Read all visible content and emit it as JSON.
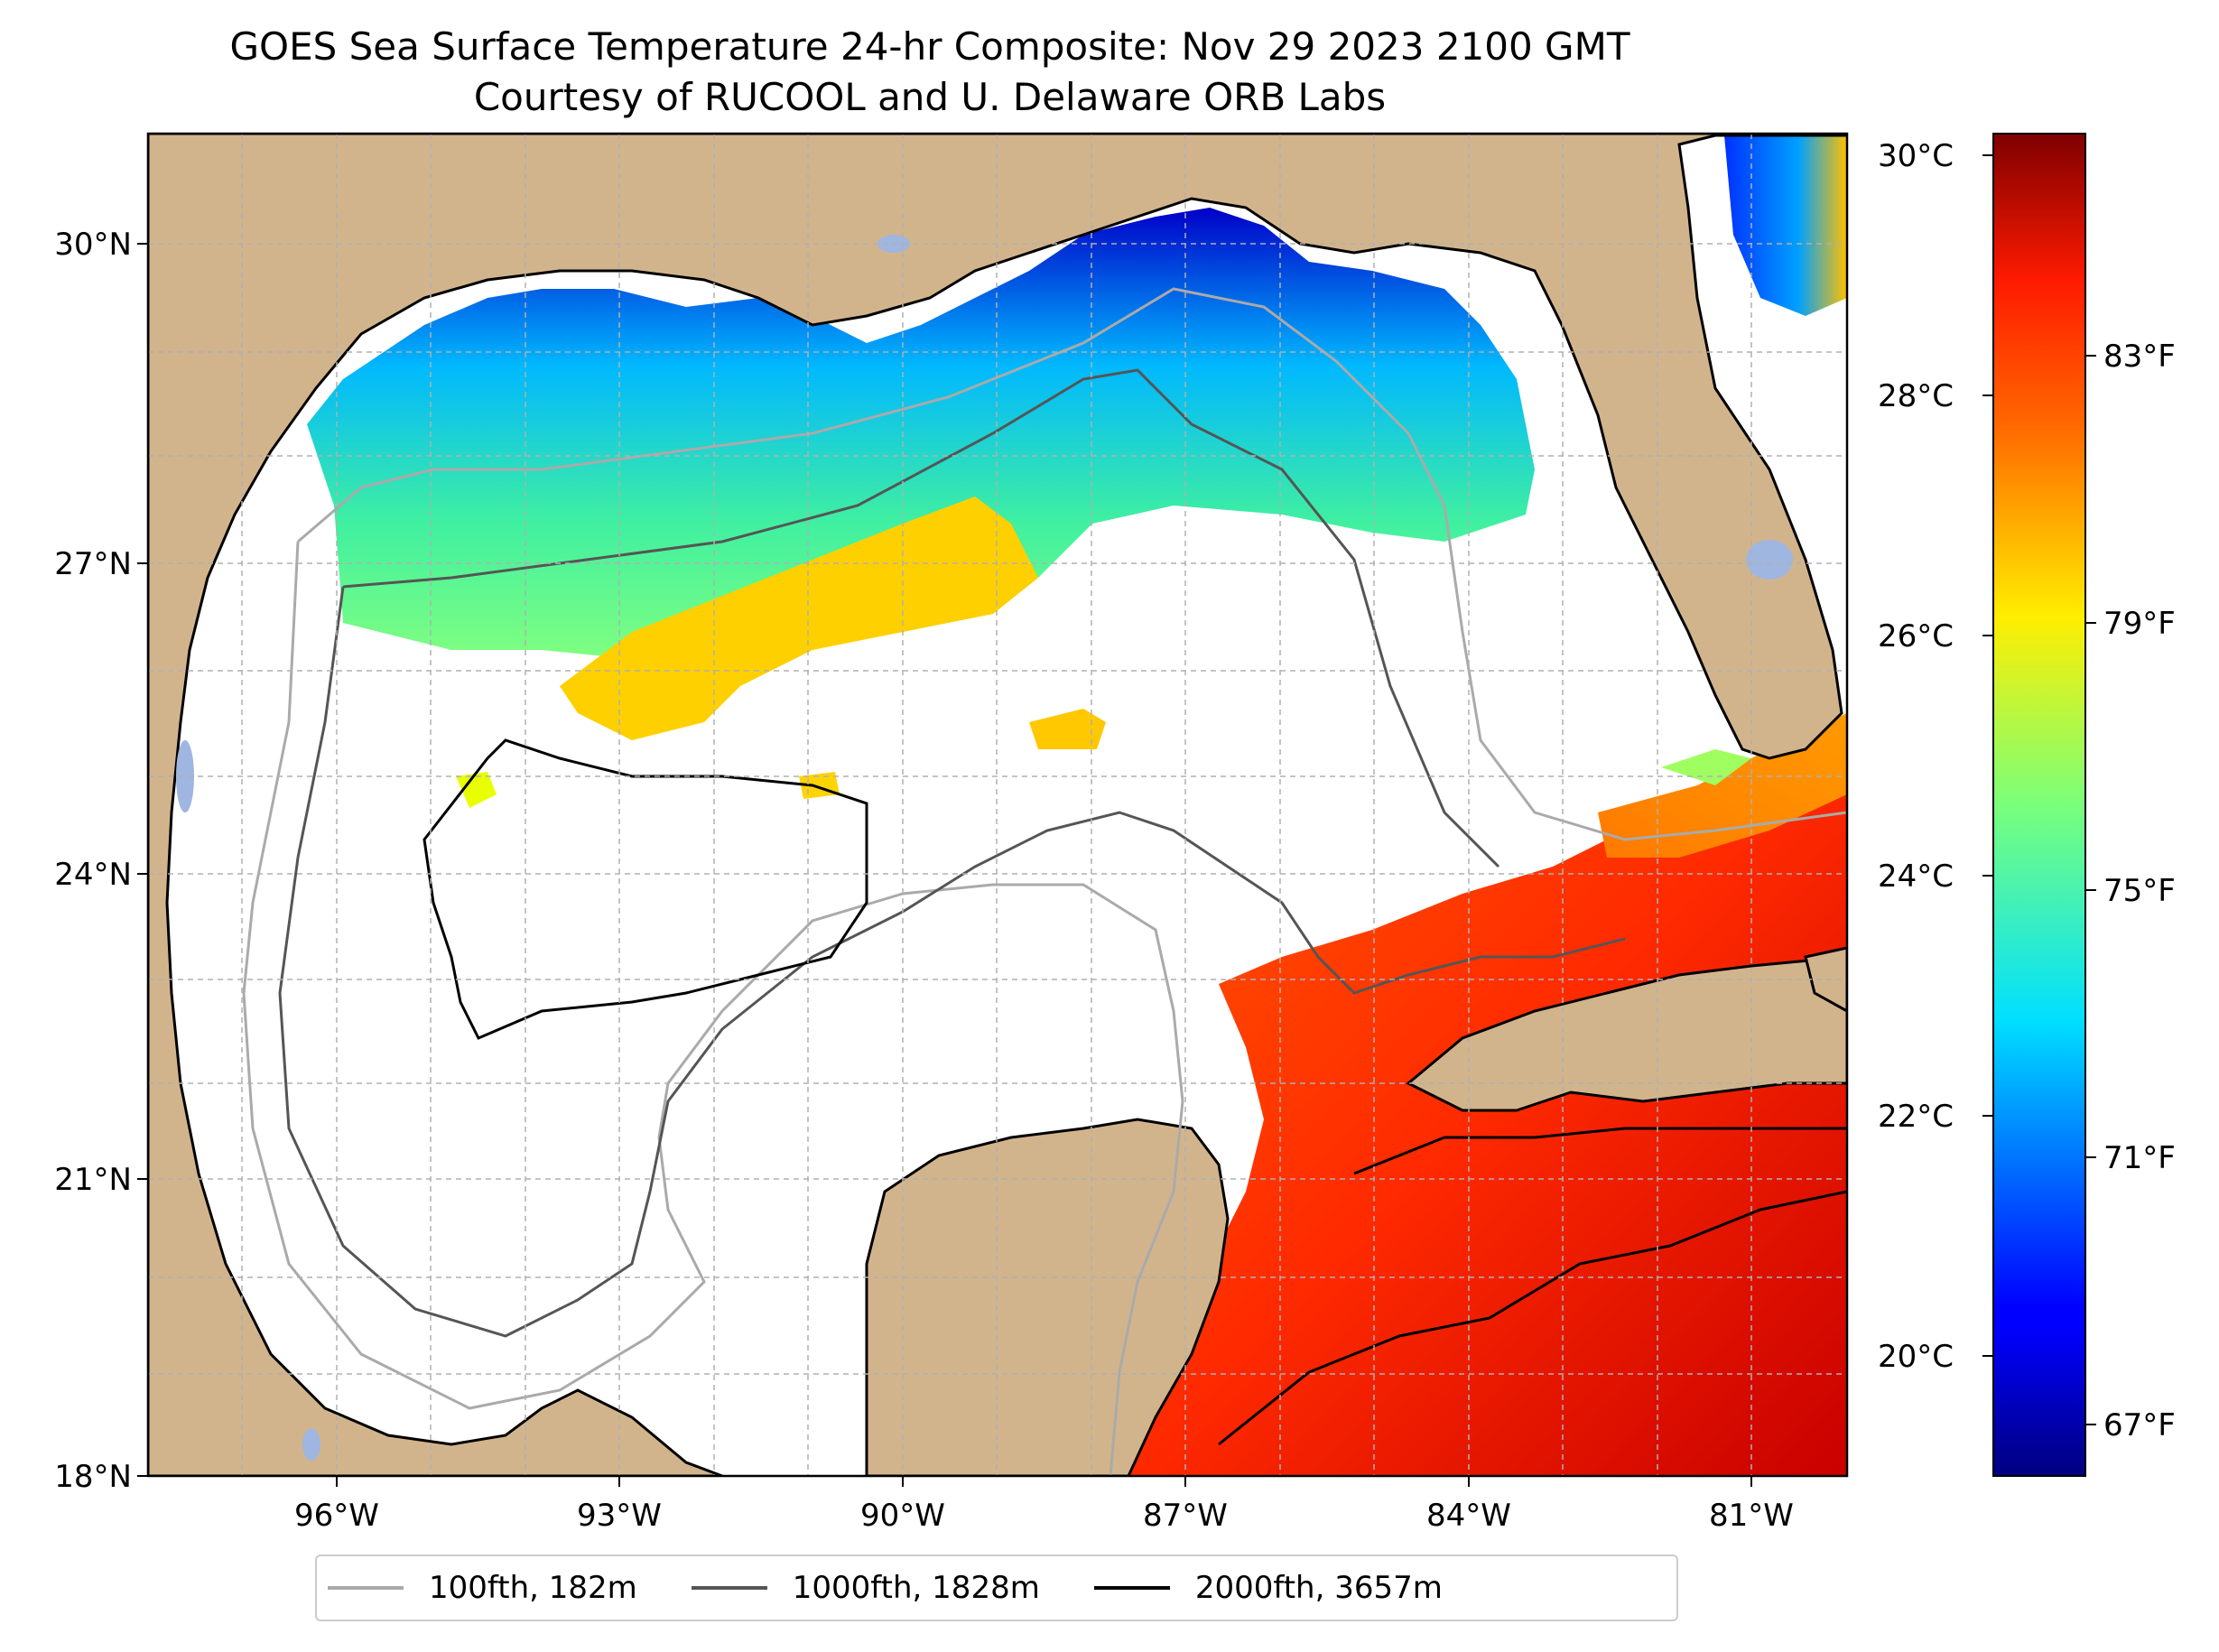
{
  "title": {
    "line1": "GOES Sea Surface Temperature 24-hr Composite: Nov 29 2023 2100 GMT",
    "line2": "Courtesy of RUCOOL and U. Delaware ORB Labs"
  },
  "map": {
    "lat_range": [
      18,
      31
    ],
    "lon_range": [
      -98,
      -80
    ],
    "lat_ticks": [
      "30°N",
      "27°N",
      "24°N",
      "21°N",
      "18°N"
    ],
    "lon_ticks": [
      "96°W",
      "93°W",
      "90°W",
      "87°W",
      "84°W",
      "81°W"
    ],
    "colors": {
      "land": "#d2b48c",
      "ocean_no_data": "#ffffff",
      "lakes": "#9fb6e0",
      "gridlines": "#b0b0b0"
    }
  },
  "colorbar": {
    "celsius_labels": [
      "30°C",
      "28°C",
      "26°C",
      "24°C",
      "22°C",
      "20°C"
    ],
    "fahrenheit_labels": [
      "83°F",
      "79°F",
      "75°F",
      "71°F",
      "67°F"
    ],
    "colormap": "jet",
    "range_c": [
      19,
      30.2
    ]
  },
  "legend": {
    "items": [
      {
        "label": "100fth, 182m",
        "color": "#aaaaaa"
      },
      {
        "label": "1000fth, 1828m",
        "color": "#555555"
      },
      {
        "label": "2000fth, 3657m",
        "color": "#000000"
      }
    ]
  }
}
